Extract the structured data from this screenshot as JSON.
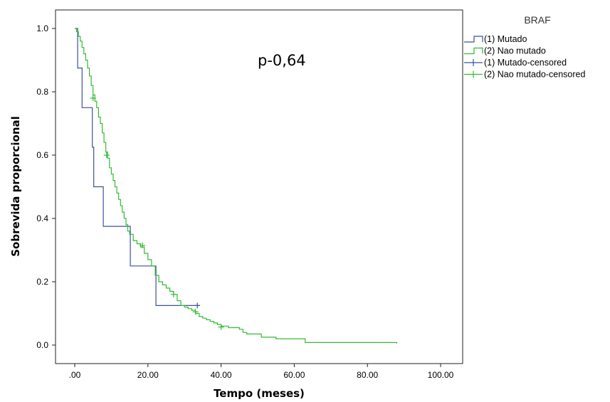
{
  "chart_data": {
    "type": "line",
    "title": "",
    "xlabel": "Tempo (meses)",
    "ylabel": "Sobrevida proporcional",
    "xlim": [
      -5,
      105
    ],
    "ylim": [
      -0.06,
      1.06
    ],
    "x_ticks": [
      0,
      20,
      40,
      60,
      80,
      100
    ],
    "x_tick_labels": [
      ".00",
      "20.00",
      "40.00",
      "60.00",
      "80.00",
      "100.00"
    ],
    "y_ticks": [
      0.0,
      0.2,
      0.4,
      0.6,
      0.8,
      1.0
    ],
    "y_tick_labels": [
      "0.0",
      "0.2",
      "0.4",
      "0.6",
      "0.8",
      "1.0"
    ],
    "grid": false,
    "legend_placement": "right",
    "annotation": "p-0,64",
    "legend": {
      "title": "BRAF",
      "entries": [
        {
          "label": "(1) Mutado",
          "kind": "step",
          "color": "#3b50a0"
        },
        {
          "label": "(2) Nao mutado",
          "kind": "step",
          "color": "#33bb33"
        },
        {
          "label": "(1) Mutado-censored",
          "kind": "censor",
          "color": "#3b50a0"
        },
        {
          "label": "(2) Nao mutado-censored",
          "kind": "censor",
          "color": "#33bb33"
        }
      ]
    },
    "series": [
      {
        "name": "(1) Mutado",
        "color": "#3b50a0",
        "steps": [
          [
            0,
            1.0
          ],
          [
            0.8,
            0.875
          ],
          [
            2,
            0.75
          ],
          [
            4.8,
            0.625
          ],
          [
            5.2,
            0.5
          ],
          [
            7.8,
            0.375
          ],
          [
            15.2,
            0.25
          ],
          [
            22.2,
            0.125
          ],
          [
            34,
            0.125
          ]
        ],
        "censored": [
          [
            33.5,
            0.125
          ]
        ]
      },
      {
        "name": "(2) Nao mutado",
        "color": "#33bb33",
        "steps": [
          [
            0,
            1.0
          ],
          [
            0.5,
            0.99
          ],
          [
            1,
            0.975
          ],
          [
            1.5,
            0.96
          ],
          [
            2,
            0.94
          ],
          [
            2.5,
            0.92
          ],
          [
            3,
            0.9
          ],
          [
            3.5,
            0.875
          ],
          [
            4,
            0.85
          ],
          [
            4.5,
            0.82
          ],
          [
            5,
            0.79
          ],
          [
            5.5,
            0.77
          ],
          [
            6,
            0.75
          ],
          [
            6.5,
            0.72
          ],
          [
            7,
            0.7
          ],
          [
            7.5,
            0.67
          ],
          [
            8,
            0.64
          ],
          [
            8.5,
            0.61
          ],
          [
            9,
            0.59
          ],
          [
            9.5,
            0.56
          ],
          [
            10,
            0.54
          ],
          [
            10.5,
            0.52
          ],
          [
            11,
            0.5
          ],
          [
            11.5,
            0.48
          ],
          [
            12,
            0.46
          ],
          [
            12.5,
            0.44
          ],
          [
            13,
            0.42
          ],
          [
            13.5,
            0.4
          ],
          [
            14,
            0.38
          ],
          [
            14.5,
            0.36
          ],
          [
            15,
            0.35
          ],
          [
            16,
            0.33
          ],
          [
            17,
            0.32
          ],
          [
            18,
            0.31
          ],
          [
            19,
            0.29
          ],
          [
            20,
            0.27
          ],
          [
            21,
            0.25
          ],
          [
            22,
            0.22
          ],
          [
            23,
            0.2
          ],
          [
            24,
            0.19
          ],
          [
            25,
            0.18
          ],
          [
            26,
            0.17
          ],
          [
            27,
            0.16
          ],
          [
            28,
            0.14
          ],
          [
            29,
            0.125
          ],
          [
            30,
            0.12
          ],
          [
            31,
            0.115
          ],
          [
            32,
            0.11
          ],
          [
            33,
            0.1
          ],
          [
            34,
            0.09
          ],
          [
            35,
            0.085
          ],
          [
            36,
            0.08
          ],
          [
            37,
            0.075
          ],
          [
            38,
            0.07
          ],
          [
            39,
            0.065
          ],
          [
            40,
            0.06
          ],
          [
            42,
            0.055
          ],
          [
            45,
            0.05
          ],
          [
            46,
            0.04
          ],
          [
            47,
            0.035
          ],
          [
            51,
            0.025
          ],
          [
            55,
            0.02
          ],
          [
            63,
            0.008
          ],
          [
            88,
            0.005
          ]
        ],
        "censored": [
          [
            5,
            0.78
          ],
          [
            8.7,
            0.6
          ],
          [
            18.5,
            0.315
          ],
          [
            27,
            0.16
          ],
          [
            33,
            0.105
          ],
          [
            40,
            0.057
          ]
        ]
      }
    ]
  }
}
